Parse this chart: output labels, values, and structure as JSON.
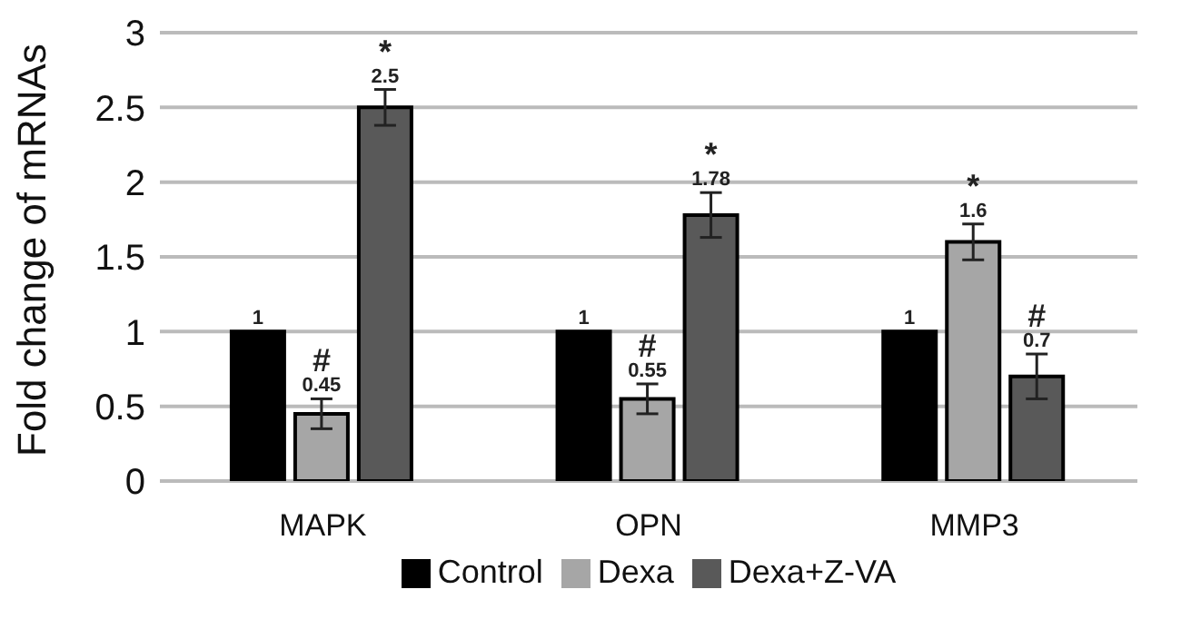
{
  "chart_data": {
    "type": "bar",
    "ylabel": "Fold change of mRNAs",
    "categories": [
      "MAPK",
      "OPN",
      "MMP3"
    ],
    "series": [
      {
        "name": "Control",
        "color": "#000000",
        "values": [
          1,
          1,
          1
        ]
      },
      {
        "name": "Dexa",
        "color": "#a6a6a6",
        "values": [
          0.45,
          0.55,
          1.6
        ],
        "errors": [
          0.1,
          0.1,
          0.12
        ]
      },
      {
        "name": "Dexa+Z-VA",
        "color": "#595959",
        "values": [
          2.5,
          1.78,
          0.7
        ],
        "errors": [
          0.12,
          0.15,
          0.15
        ]
      }
    ],
    "ylim": [
      0,
      3
    ],
    "yticks": [
      0,
      0.5,
      1,
      1.5,
      2,
      2.5,
      3
    ],
    "grid": "y",
    "legend": "bottom",
    "data_labels": true,
    "annotations": [
      "*",
      {
        "text": "#",
        "x": "MAPK",
        "y": 0.45
      },
      "*",
      {
        "text": "#",
        "x": "OPN",
        "y": 0.55
      },
      {
        "text": "*",
        "x": "MMP3",
        "y": 1.6
      },
      "#"
    ]
  }
}
